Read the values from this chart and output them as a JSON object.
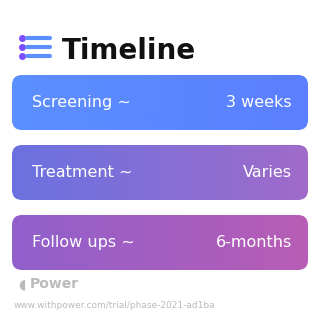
{
  "title": "Timeline",
  "title_fontsize": 20,
  "title_color": "#111111",
  "background_color": "#ffffff",
  "icon_color": "#7c4dff",
  "icon_line_color": "#5b8fff",
  "rows": [
    {
      "label": "Screening ~",
      "value": "3 weeks",
      "color_left": "#5b8fff",
      "color_right": "#5b7fff"
    },
    {
      "label": "Treatment ~",
      "value": "Varies",
      "color_left": "#6a72e0",
      "color_right": "#a06bca"
    },
    {
      "label": "Follow ups ~",
      "value": "6-months",
      "color_left": "#9060cc",
      "color_right": "#b85db5"
    }
  ],
  "text_fontsize": 11.5,
  "text_color": "#ffffff",
  "footer_text": "Power",
  "footer_url": "www.withpower.com/trial/phase-2021-ad1ba",
  "footer_color": "#bbbbbb",
  "footer_fontsize": 6.5
}
